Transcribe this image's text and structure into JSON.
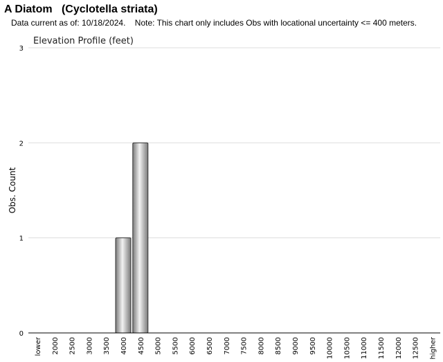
{
  "page": {
    "title": "A Diatom   (Cyclotella striata)",
    "note": "Data current as of: 10/18/2024.    Note: This chart only includes Obs with locational uncertainty <= 400 meters."
  },
  "chart_data": {
    "type": "bar",
    "title": "Elevation Profile (feet)",
    "xlabel": "",
    "ylabel": "Obs. Count",
    "categories": [
      "lower",
      "2000",
      "2500",
      "3000",
      "3500",
      "4000",
      "4500",
      "5000",
      "5500",
      "6000",
      "6500",
      "7000",
      "7500",
      "8000",
      "8500",
      "9000",
      "9500",
      "10000",
      "10500",
      "11000",
      "11500",
      "12000",
      "12500",
      "higher"
    ],
    "values": [
      0,
      0,
      0,
      0,
      0,
      1,
      2,
      0,
      0,
      0,
      0,
      0,
      0,
      0,
      0,
      0,
      0,
      0,
      0,
      0,
      0,
      0,
      0,
      0
    ],
    "ylim": [
      0,
      3
    ],
    "yticks": [
      0,
      1,
      2,
      3
    ],
    "grid": true,
    "colors": {
      "bar_dark": "#7a7a7a",
      "bar_light": "#f2f2f2",
      "bar_stroke": "#333333",
      "grid": "#dddddd",
      "axis": "#000000"
    }
  }
}
